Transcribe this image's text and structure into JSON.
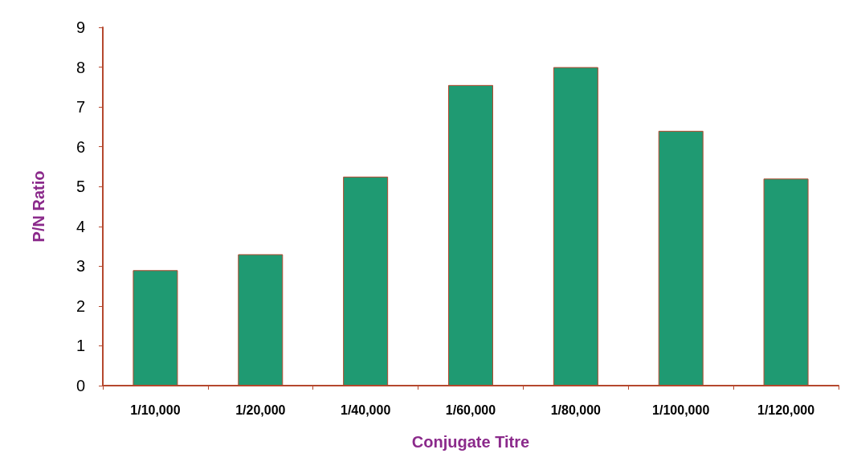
{
  "chart_data": {
    "type": "bar",
    "xlabel": "Conjugate Titre",
    "ylabel": "P/N Ratio",
    "categories": [
      "1/10,000",
      "1/20,000",
      "1/40,000",
      "1/60,000",
      "1/80,000",
      "1/100,000",
      "1/120,000"
    ],
    "values": [
      2.9,
      3.3,
      5.25,
      7.55,
      8.0,
      6.4,
      5.2
    ],
    "color": "#1f9a72",
    "ylim": [
      0,
      9
    ],
    "yticks": [
      0,
      1,
      2,
      3,
      4,
      5,
      6,
      7,
      8,
      9
    ],
    "grid": false
  }
}
